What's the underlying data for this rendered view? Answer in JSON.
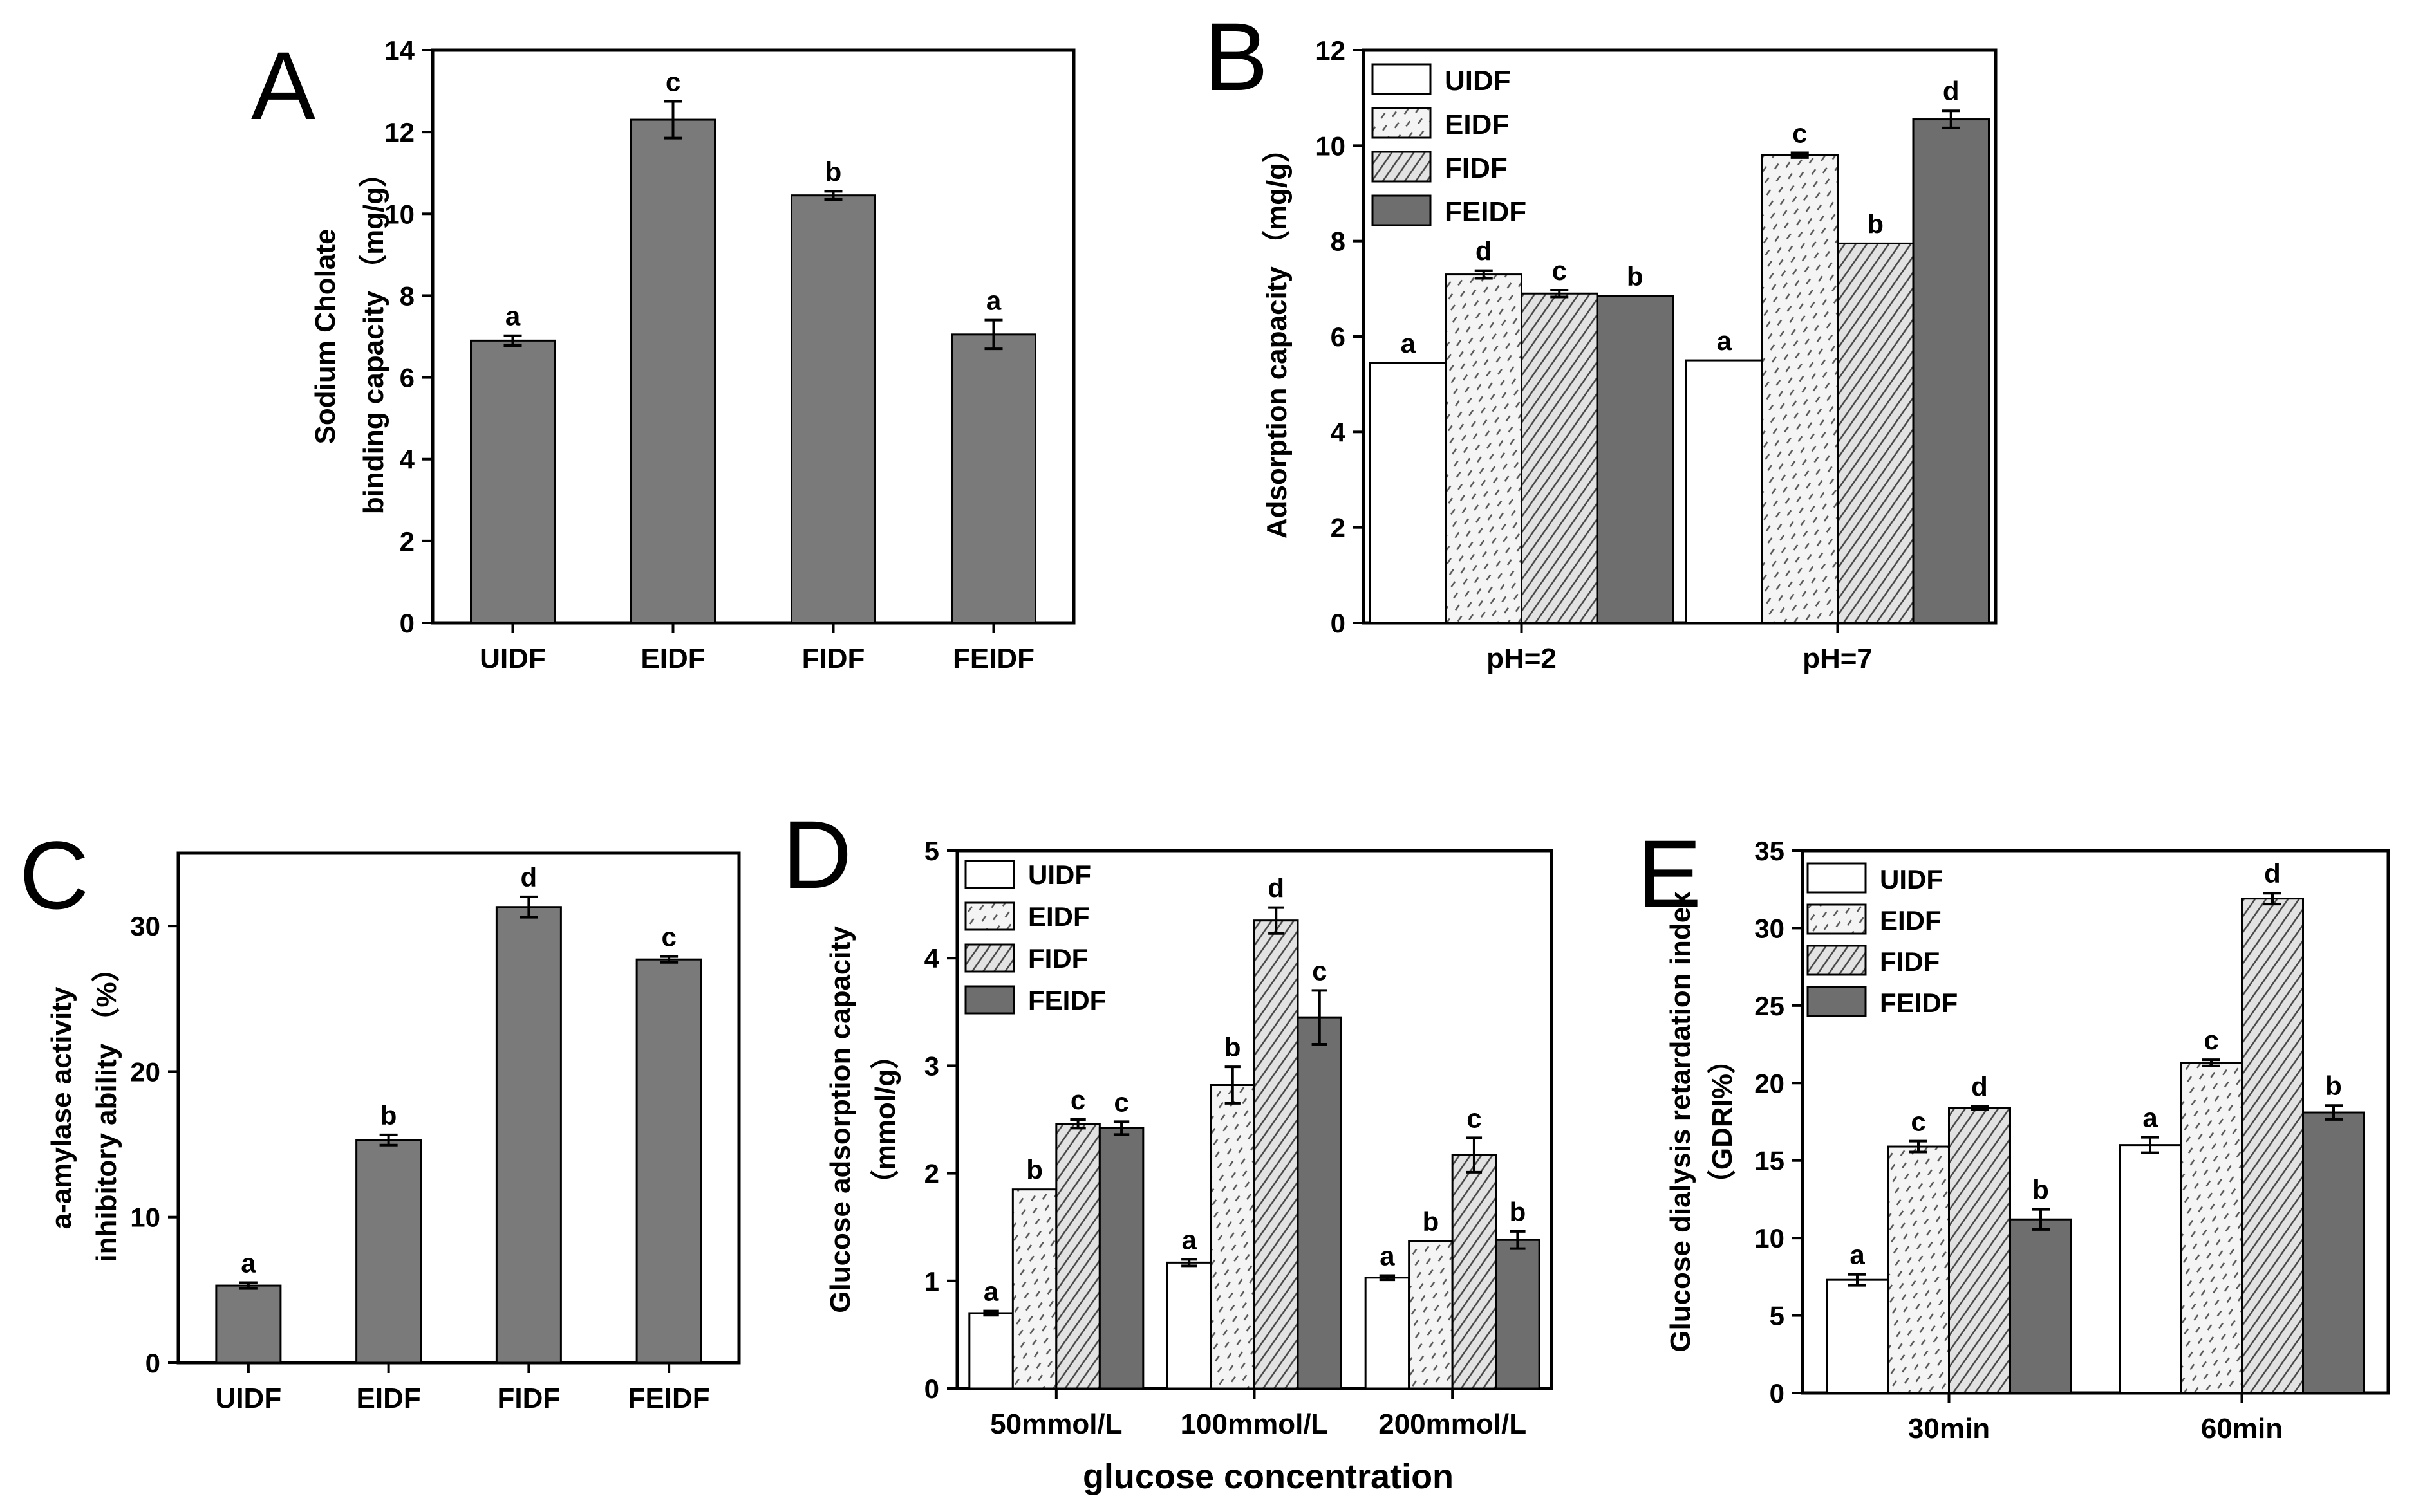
{
  "colors": {
    "UIDF": "#ffffff",
    "EIDF": "#f0f0f0",
    "FIDF": "#d8d8d8",
    "FEIDF": "#6e6e6e",
    "gray_bar": "#7a7a7a"
  },
  "figure": {
    "xlabel_bottom": "glucose concentration"
  },
  "chart_data": [
    {
      "id": "A",
      "panel_letter": "A",
      "type": "bar",
      "title": "",
      "ylabel_lines": [
        "Sodium Cholate",
        "binding capacity （mg/g）"
      ],
      "ylim": [
        0,
        14
      ],
      "yticks": [
        0,
        2,
        4,
        6,
        8,
        10,
        12,
        14
      ],
      "categories": [
        "UIDF",
        "EIDF",
        "FIDF",
        "FEIDF"
      ],
      "series": [
        {
          "values": [
            6.9,
            12.3,
            10.45,
            7.05
          ],
          "errors": [
            0.12,
            0.45,
            0.1,
            0.35
          ],
          "letters": [
            "a",
            "c",
            "b",
            "a"
          ]
        }
      ],
      "legend": "none",
      "grid": false
    },
    {
      "id": "B",
      "panel_letter": "B",
      "type": "bar",
      "title": "",
      "ylabel_lines": [
        "Adsorption capacity （mg/g）"
      ],
      "ylim": [
        0,
        12
      ],
      "yticks": [
        0,
        2,
        4,
        6,
        8,
        10,
        12
      ],
      "categories": [
        "pH=2",
        "pH=7"
      ],
      "series": [
        {
          "name": "UIDF",
          "values": [
            5.45,
            5.5
          ],
          "errors": [
            0,
            0
          ],
          "letters": [
            "a",
            "a"
          ]
        },
        {
          "name": "EIDF",
          "values": [
            7.3,
            9.8
          ],
          "errors": [
            0.08,
            0.05
          ],
          "letters": [
            "d",
            "c"
          ]
        },
        {
          "name": "FIDF",
          "values": [
            6.9,
            7.95
          ],
          "errors": [
            0.07,
            0
          ],
          "letters": [
            "c",
            "b"
          ]
        },
        {
          "name": "FEIDF",
          "values": [
            6.85,
            10.55
          ],
          "errors": [
            0,
            0.18
          ],
          "letters": [
            "b",
            "d"
          ]
        }
      ],
      "legend": "top-left",
      "grid": false
    },
    {
      "id": "C",
      "panel_letter": "C",
      "type": "bar",
      "title": "",
      "ylabel_lines": [
        "a-amylase activity",
        "inhibitory ability （%）"
      ],
      "ylim": [
        0,
        35
      ],
      "yticks": [
        0,
        10,
        20,
        30
      ],
      "categories": [
        "UIDF",
        "EIDF",
        "FIDF",
        "FEIDF"
      ],
      "series": [
        {
          "values": [
            5.3,
            15.3,
            31.3,
            27.7
          ],
          "errors": [
            0.2,
            0.35,
            0.7,
            0.2
          ],
          "letters": [
            "a",
            "b",
            "d",
            "c"
          ]
        }
      ],
      "legend": "none",
      "grid": false
    },
    {
      "id": "D",
      "panel_letter": "D",
      "type": "bar",
      "title": "",
      "ylabel_lines": [
        "Glucose adsorption capacity",
        "（mmol/g）"
      ],
      "xlabel": "glucose concentration",
      "ylim": [
        0,
        5
      ],
      "yticks": [
        0,
        1,
        2,
        3,
        4,
        5
      ],
      "categories": [
        "50mmol/L",
        "100mmol/L",
        "200mmol/L"
      ],
      "series": [
        {
          "name": "UIDF",
          "values": [
            0.7,
            1.17,
            1.03
          ],
          "errors": [
            0.02,
            0.03,
            0.02
          ],
          "letters": [
            "a",
            "a",
            "a"
          ]
        },
        {
          "name": "EIDF",
          "values": [
            1.85,
            2.82,
            1.37
          ],
          "errors": [
            0,
            0.17,
            0
          ],
          "letters": [
            "b",
            "b",
            "b"
          ]
        },
        {
          "name": "FIDF",
          "values": [
            2.46,
            4.35,
            2.17
          ],
          "errors": [
            0.04,
            0.12,
            0.16
          ],
          "letters": [
            "c",
            "d",
            "c"
          ]
        },
        {
          "name": "FEIDF",
          "values": [
            2.42,
            3.45,
            1.38
          ],
          "errors": [
            0.06,
            0.25,
            0.08
          ],
          "letters": [
            "c",
            "c",
            "b"
          ]
        }
      ],
      "legend": "top-left",
      "grid": false
    },
    {
      "id": "E",
      "panel_letter": "E",
      "type": "bar",
      "title": "",
      "ylabel_lines": [
        "Glucose dialysis retardation index",
        "（GDRI%）"
      ],
      "ylim": [
        0,
        35
      ],
      "yticks": [
        0,
        5,
        10,
        15,
        20,
        25,
        30,
        35
      ],
      "categories": [
        "30min",
        "60min"
      ],
      "series": [
        {
          "name": "UIDF",
          "values": [
            7.3,
            16.0
          ],
          "errors": [
            0.35,
            0.5
          ],
          "letters": [
            "a",
            "a"
          ]
        },
        {
          "name": "EIDF",
          "values": [
            15.9,
            21.3
          ],
          "errors": [
            0.35,
            0.2
          ],
          "letters": [
            "c",
            "c"
          ]
        },
        {
          "name": "FIDF",
          "values": [
            18.4,
            31.9
          ],
          "errors": [
            0.1,
            0.35
          ],
          "letters": [
            "d",
            "d"
          ]
        },
        {
          "name": "FEIDF",
          "values": [
            11.2,
            18.1
          ],
          "errors": [
            0.65,
            0.45
          ],
          "letters": [
            "b",
            "b"
          ]
        }
      ],
      "legend": "top-left",
      "grid": false
    }
  ]
}
